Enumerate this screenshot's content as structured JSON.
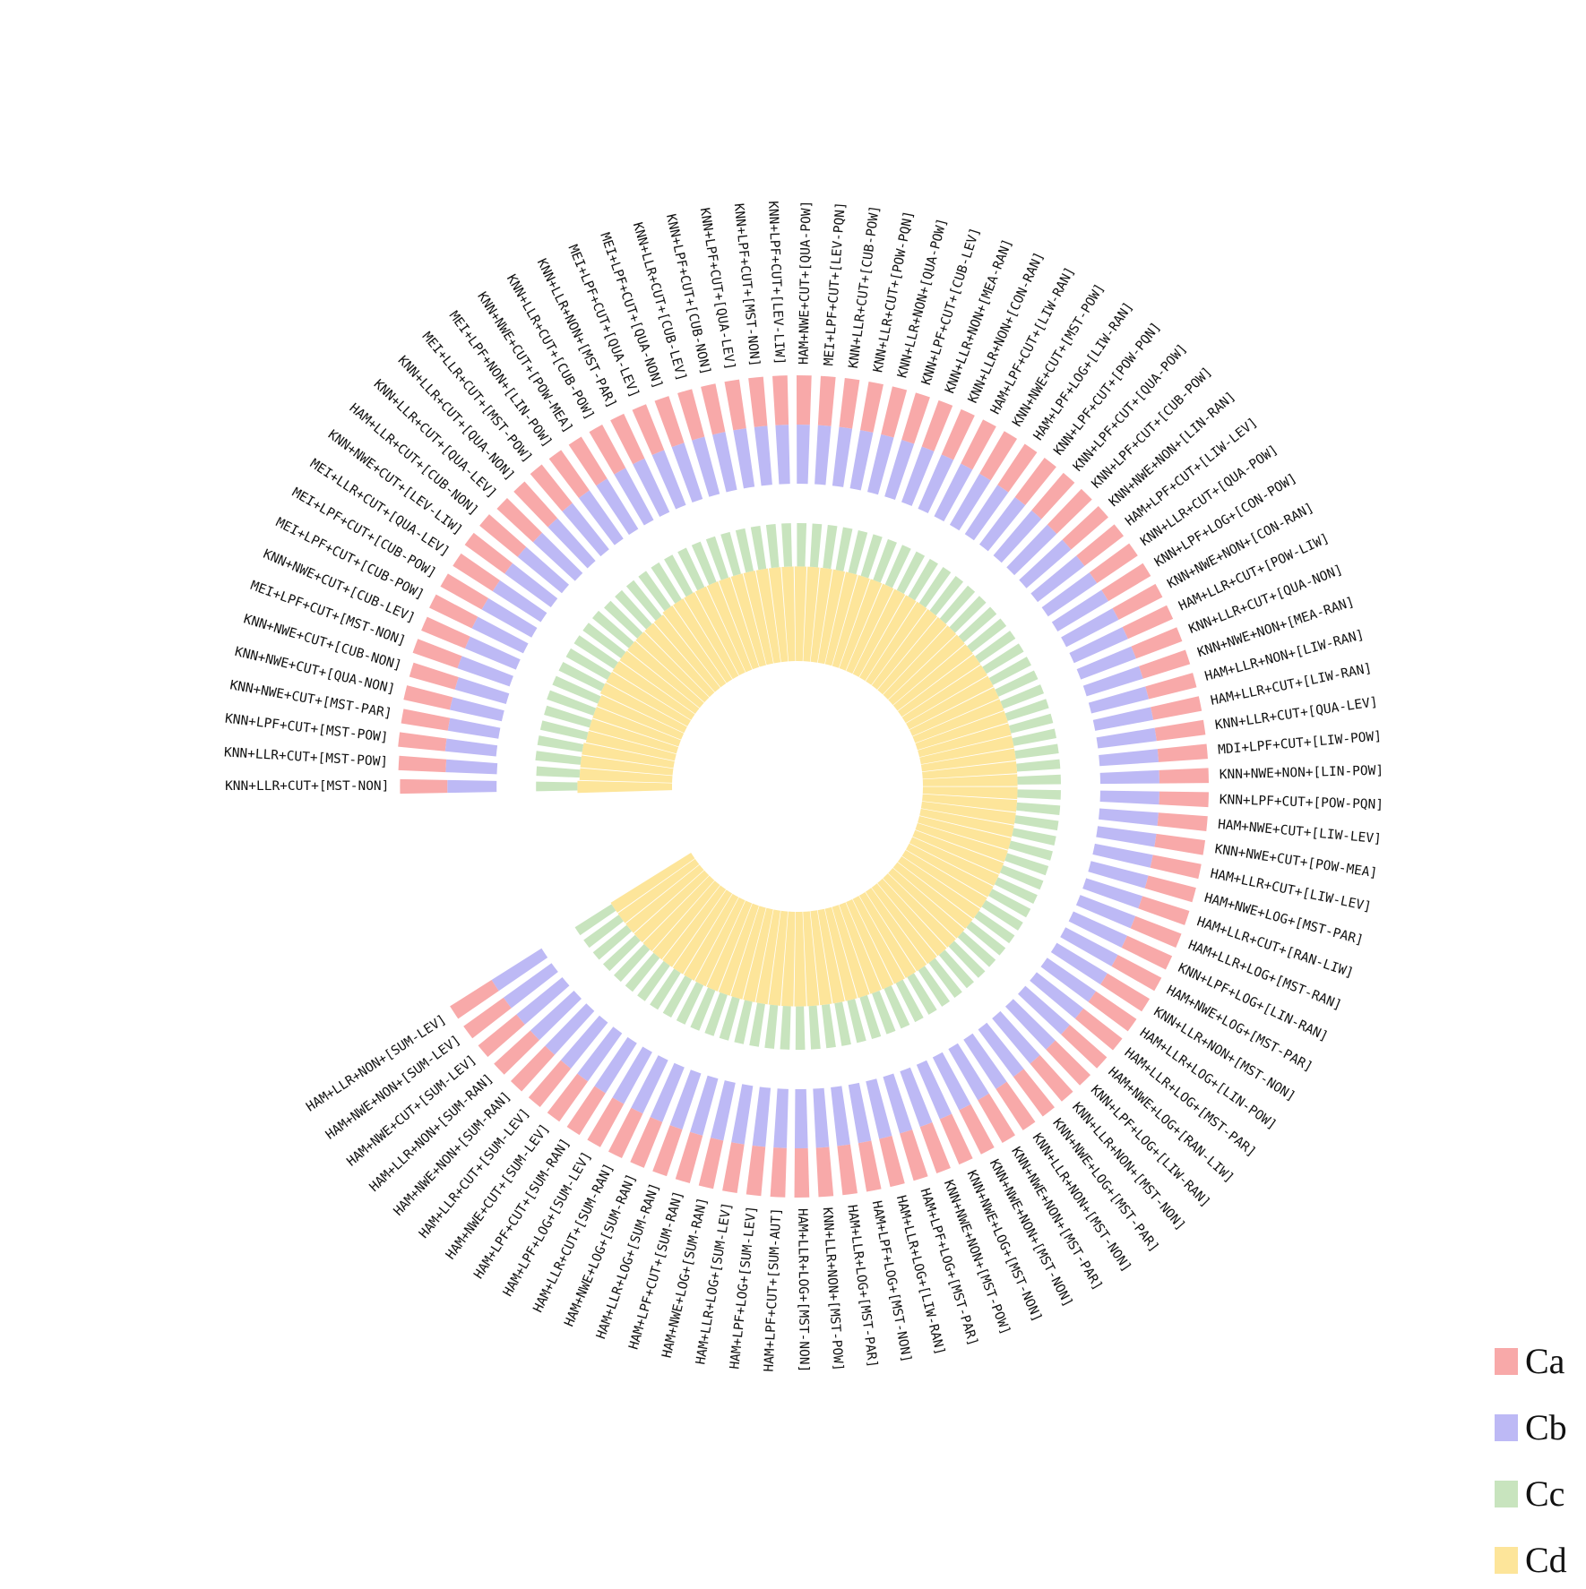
{
  "chart_data": {
    "type": "bar",
    "layout": "radial-stacked",
    "title": "",
    "xlabel": "",
    "ylabel": "",
    "categories": [
      "KNN+LLR+CUT+[MST-NON]",
      "KNN+LLR+CUT+[MST-POW]",
      "KNN+LPF+CUT+[MST-POW]",
      "KNN+NWE+CUT+[MST-PAR]",
      "KNN+NWE+CUT+[QUA-NON]",
      "KNN+NWE+CUT+[CUB-NON]",
      "MEI+LPF+CUT+[MST-NON]",
      "KNN+NWE+CUT+[CUB-LEV]",
      "MEI+LPF+CUT+[CUB-POW]",
      "MEI+LPF+CUT+[CUB-POW]",
      "MEI+LLR+CUT+[QUA-LEV]",
      "KNN+NWE+CUT+[LEV-LIW]",
      "HAM+LLR+CUT+[CUB-NON]",
      "KNN+LLR+CUT+[QUA-LEV]",
      "KNN+LLR+CUT+[QUA-NON]",
      "MEI+LLR+CUT+[MST-POW]",
      "MEI+LPF+NON+[LIN-POW]",
      "KNN+NWE+CUT+[POW-MEA]",
      "KNN+LLR+CUT+[CUB-POW]",
      "KNN+LLR+NON+[MST-PAR]",
      "MEI+LPF+CUT+[QUA-LEV]",
      "MEI+LPF+CUT+[QUA-NON]",
      "KNN+LLR+CUT+[CUB-LEV]",
      "KNN+LPF+CUT+[CUB-NON]",
      "KNN+LPF+CUT+[QUA-LEV]",
      "KNN+LPF+CUT+[MST-NON]",
      "KNN+LPF+CUT+[LEV-LIW]",
      "HAM+NWE+CUT+[QUA-POW]",
      "MEI+LPF+CUT+[LEV-PQN]",
      "KNN+LLR+CUT+[CUB-POW]",
      "KNN+LLR+CUT+[POW-PQN]",
      "KNN+LLR+NON+[QUA-POW]",
      "KNN+LPF+CUT+[CUB-LEV]",
      "KNN+LLR+NON+[MEA-RAN]",
      "KNN+LLR+NON+[CON-RAN]",
      "HAM+LPF+CUT+[LIW-RAN]",
      "KNN+NWE+CUT+[MST-POW]",
      "HAM+LPF+LOG+[LIW-RAN]",
      "KNN+LPF+CUT+[POW-PQN]",
      "KNN+LPF+CUT+[QUA-POW]",
      "KNN+LPF+CUT+[CUB-POW]",
      "KNN+NWE+NON+[LIN-RAN]",
      "HAM+LPF+CUT+[LIW-LEV]",
      "KNN+LLR+CUT+[QUA-POW]",
      "KNN+LPF+LOG+[CON-POW]",
      "KNN+NWE+NON+[CON-RAN]",
      "HAM+LLR+CUT+[POW-LIW]",
      "KNN+LLR+CUT+[QUA-NON]",
      "KNN+NWE+NON+[MEA-RAN]",
      "HAM+LLR+NON+[LIW-RAN]",
      "HAM+LLR+CUT+[LIW-RAN]",
      "KNN+LLR+CUT+[QUA-LEV]",
      "MDI+LPF+CUT+[LIW-POW]",
      "KNN+NWE+NON+[LIN-POW]",
      "KNN+LPF+CUT+[POW-PQN]",
      "HAM+NWE+CUT+[LIW-LEV]",
      "KNN+NWE+CUT+[POW-MEA]",
      "HAM+LLR+CUT+[LIW-LEV]",
      "HAM+NWE+LOG+[MST-PAR]",
      "HAM+LLR+CUT+[RAN-LIW]",
      "HAM+LLR+LOG+[MST-RAN]",
      "KNN+LPF+LOG+[LIN-RAN]",
      "HAM+NWE+LOG+[MST-PAR]",
      "KNN+LLR+NON+[MST-NON]",
      "HAM+LLR+LOG+[LIN-POW]",
      "HAM+LLR+LOG+[MST-PAR]",
      "HAM+NWE+LOG+[RAN-LIW]",
      "KNN+LPF+LOG+[LIW-RAN]",
      "KNN+LLR+NON+[MST-NON]",
      "KNN+NWE+LOG+[MST-PAR]",
      "KNN+LLR+NON+[MST-NON]",
      "KNN+NWE+NON+[MST-PAR]",
      "KNN+NWE+NON+[MST-NON]",
      "KNN+NWE+LOG+[MST-NON]",
      "KNN+NWE+NON+[MST-POW]",
      "HAM+LPF+LOG+[MST-PAR]",
      "HAM+LLR+LOG+[LIW-RAN]",
      "HAM+LPF+LOG+[MST-NON]",
      "HAM+LLR+LOG+[MST-PAR]",
      "KNN+LLR+NON+[MST-POW]",
      "HAM+LLR+LOG+[MST-NON]",
      "HAM+LPF+CUT+[SUM-AUT]",
      "HAM+LPF+LOG+[SUM-LEV]",
      "HAM+LLR+LOG+[SUM-LEV]",
      "HAM+NWE+LOG+[SUM-RAN]",
      "HAM+LPF+CUT+[SUM-RAN]",
      "HAM+LLR+LOG+[SUM-RAN]",
      "HAM+NWE+LOG+[SUM-RAN]",
      "HAM+LLR+CUT+[SUM-RAN]",
      "HAM+LPF+LOG+[SUM-LEV]",
      "HAM+LPF+CUT+[SUM-RAN]",
      "HAM+NWE+CUT+[SUM-LEV]",
      "HAM+LLR+CUT+[SUM-LEV]",
      "HAM+NWE+NON+[SUM-RAN]",
      "HAM+LLR+NON+[SUM-RAN]",
      "HAM+NWE+CUT+[SUM-LEV]",
      "HAM+NWE+NON+[SUM-LEV]",
      "HAM+LLR+NON+[SUM-LEV]"
    ],
    "series": [
      {
        "name": "Cd",
        "color": "#fde59a",
        "values": [
          48,
          47,
          47,
          47,
          46,
          46,
          46,
          46,
          47,
          47,
          47,
          47,
          47,
          47,
          47,
          47,
          48,
          48,
          48,
          48,
          48,
          48,
          48,
          48,
          48,
          48,
          48,
          48,
          48,
          48,
          48,
          48,
          48,
          48,
          48,
          48,
          48,
          48,
          48,
          48,
          48,
          48,
          48,
          48,
          48,
          48,
          48,
          48,
          48,
          48,
          48,
          48,
          48,
          48,
          48,
          48,
          48,
          48,
          48,
          48,
          48,
          48,
          48,
          48,
          48,
          48,
          48,
          48,
          48,
          48,
          48,
          48,
          48,
          48,
          48,
          48,
          48,
          48,
          48,
          48,
          48,
          48,
          48,
          48,
          48,
          48,
          48,
          48,
          48,
          48,
          48,
          48,
          48,
          48,
          48,
          48,
          48,
          48
        ]
      },
      {
        "name": "Cc",
        "color": "#c8e4be",
        "values": [
          21,
          22,
          23,
          23,
          24,
          24,
          25,
          25,
          24,
          24,
          24,
          24,
          24,
          23,
          23,
          23,
          22,
          22,
          22,
          22,
          22,
          22,
          22,
          22,
          22,
          22,
          22,
          22,
          22,
          22,
          22,
          22,
          22,
          22,
          22,
          22,
          22,
          22,
          22,
          22,
          22,
          22,
          22,
          22,
          22,
          22,
          22,
          22,
          22,
          22,
          22,
          22,
          22,
          22,
          22,
          22,
          22,
          22,
          22,
          22,
          22,
          22,
          22,
          22,
          22,
          22,
          22,
          22,
          22,
          22,
          22,
          22,
          22,
          22,
          22,
          22,
          22,
          22,
          22,
          22,
          22,
          22,
          22,
          22,
          22,
          22,
          22,
          22,
          22,
          22,
          22,
          22,
          22,
          22,
          22,
          22,
          22,
          22
        ]
      },
      {
        "name": "Cb",
        "color": "#bdb9f5",
        "values": [
          25,
          26,
          26,
          26,
          27,
          27,
          28,
          28,
          29,
          29,
          29,
          29,
          29,
          29,
          29,
          30,
          30,
          30,
          30,
          30,
          30,
          30,
          30,
          30,
          30,
          30,
          30,
          30,
          30,
          30,
          30,
          30,
          30,
          30,
          30,
          30,
          30,
          30,
          30,
          30,
          30,
          30,
          30,
          30,
          30,
          30,
          30,
          30,
          30,
          30,
          30,
          30,
          30,
          30,
          30,
          30,
          30,
          30,
          30,
          30,
          30,
          30,
          30,
          30,
          30,
          30,
          30,
          30,
          30,
          30,
          30,
          30,
          30,
          30,
          30,
          30,
          30,
          30,
          30,
          30,
          30,
          30,
          30,
          30,
          30,
          30,
          30,
          30,
          30,
          30,
          30,
          30,
          30,
          30,
          30,
          30,
          30,
          30
        ]
      },
      {
        "name": "Ca",
        "color": "#f8a9a9",
        "values": [
          24,
          24,
          24,
          24,
          24,
          24,
          24,
          24,
          24,
          24,
          24,
          25,
          25,
          25,
          25,
          25,
          25,
          25,
          25,
          25,
          25,
          25,
          25,
          25,
          25,
          25,
          25,
          25,
          25,
          25,
          25,
          25,
          25,
          25,
          25,
          25,
          25,
          25,
          25,
          25,
          25,
          25,
          25,
          25,
          25,
          25,
          25,
          25,
          25,
          25,
          25,
          25,
          25,
          25,
          25,
          25,
          25,
          25,
          25,
          25,
          25,
          25,
          25,
          25,
          25,
          25,
          25,
          25,
          25,
          25,
          25,
          25,
          25,
          25,
          25,
          25,
          25,
          25,
          25,
          25,
          25,
          25,
          25,
          25,
          25,
          25,
          25,
          25,
          25,
          25,
          25,
          25,
          25,
          25,
          25,
          25,
          25,
          25
        ]
      }
    ],
    "legend": {
      "placement": "bottom-right",
      "entries": [
        {
          "label": "Ca",
          "color": "#f8a9a9"
        },
        {
          "label": "Cb",
          "color": "#bdb9f5"
        },
        {
          "label": "Cc",
          "color": "#c8e4be"
        },
        {
          "label": "Cd",
          "color": "#fde59a"
        }
      ]
    },
    "grid": false
  }
}
